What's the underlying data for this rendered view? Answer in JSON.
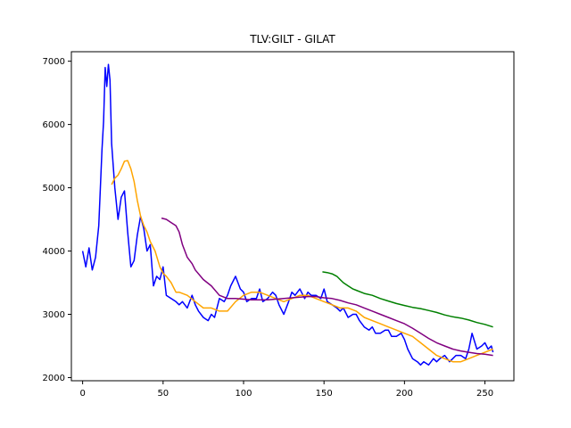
{
  "chart_data": {
    "type": "line",
    "title": "TLV:GILT - GILAT",
    "xlabel": "",
    "ylabel": "",
    "xlim": [
      -7,
      268
    ],
    "ylim": [
      1950,
      7150
    ],
    "xticks": [
      0,
      50,
      100,
      150,
      200,
      250
    ],
    "yticks": [
      2000,
      3000,
      4000,
      5000,
      6000,
      7000
    ],
    "grid": false,
    "series": [
      {
        "color": "#0000ff",
        "x": [
          0,
          2,
          4,
          6,
          8,
          10,
          11,
          12,
          13,
          14,
          15,
          16,
          17,
          18,
          20,
          22,
          24,
          26,
          28,
          30,
          32,
          34,
          36,
          38,
          40,
          42,
          44,
          46,
          48,
          50,
          52,
          55,
          58,
          60,
          62,
          65,
          68,
          70,
          72,
          75,
          78,
          80,
          82,
          85,
          88,
          90,
          92,
          95,
          98,
          100,
          102,
          105,
          108,
          110,
          112,
          115,
          118,
          120,
          122,
          125,
          128,
          130,
          132,
          135,
          138,
          140,
          142,
          145,
          148,
          150,
          152,
          155,
          158,
          160,
          162,
          165,
          168,
          170,
          172,
          175,
          178,
          180,
          182,
          185,
          188,
          190,
          192,
          195,
          198,
          200,
          202,
          205,
          208,
          210,
          212,
          215,
          218,
          220,
          222,
          225,
          228,
          230,
          232,
          235,
          238,
          240,
          242,
          245,
          248,
          250,
          252,
          254,
          255
        ],
        "y": [
          4000,
          3750,
          4050,
          3700,
          3900,
          4400,
          5000,
          5600,
          6050,
          6900,
          6600,
          6950,
          6700,
          5700,
          5000,
          4500,
          4850,
          4950,
          4300,
          3750,
          3850,
          4250,
          4550,
          4350,
          4000,
          4100,
          3450,
          3600,
          3550,
          3750,
          3300,
          3250,
          3200,
          3150,
          3200,
          3100,
          3300,
          3150,
          3050,
          2950,
          2900,
          3000,
          2950,
          3250,
          3200,
          3300,
          3450,
          3600,
          3400,
          3350,
          3200,
          3250,
          3250,
          3400,
          3200,
          3250,
          3350,
          3300,
          3150,
          3000,
          3200,
          3350,
          3300,
          3400,
          3250,
          3350,
          3300,
          3300,
          3250,
          3400,
          3200,
          3150,
          3100,
          3050,
          3100,
          2950,
          3000,
          3000,
          2900,
          2800,
          2750,
          2800,
          2700,
          2700,
          2750,
          2750,
          2650,
          2650,
          2700,
          2600,
          2450,
          2300,
          2250,
          2200,
          2250,
          2200,
          2300,
          2250,
          2300,
          2350,
          2250,
          2300,
          2350,
          2350,
          2300,
          2450,
          2700,
          2450,
          2500,
          2550,
          2450,
          2500,
          2400
        ]
      },
      {
        "color": "#ffa500",
        "x": [
          18,
          20,
          22,
          24,
          26,
          28,
          30,
          32,
          34,
          36,
          38,
          40,
          42,
          45,
          48,
          50,
          52,
          55,
          58,
          60,
          65,
          70,
          75,
          80,
          85,
          90,
          95,
          100,
          105,
          110,
          115,
          120,
          125,
          130,
          135,
          140,
          145,
          150,
          155,
          160,
          165,
          170,
          175,
          180,
          185,
          190,
          195,
          200,
          205,
          210,
          215,
          220,
          225,
          230,
          235,
          240,
          245,
          250,
          255
        ],
        "y": [
          5050,
          5150,
          5200,
          5300,
          5420,
          5430,
          5300,
          5100,
          4800,
          4550,
          4400,
          4300,
          4150,
          4000,
          3750,
          3650,
          3600,
          3500,
          3350,
          3350,
          3300,
          3200,
          3100,
          3100,
          3050,
          3050,
          3200,
          3300,
          3350,
          3350,
          3300,
          3250,
          3200,
          3250,
          3300,
          3300,
          3250,
          3200,
          3150,
          3100,
          3100,
          3050,
          2950,
          2900,
          2850,
          2800,
          2750,
          2700,
          2650,
          2550,
          2450,
          2350,
          2300,
          2250,
          2250,
          2300,
          2350,
          2400,
          2450
        ]
      },
      {
        "color": "#800080",
        "x": [
          49,
          52,
          55,
          58,
          60,
          62,
          65,
          68,
          70,
          75,
          80,
          85,
          90,
          95,
          100,
          105,
          110,
          115,
          120,
          125,
          130,
          135,
          140,
          145,
          150,
          155,
          160,
          165,
          170,
          175,
          180,
          185,
          190,
          195,
          200,
          205,
          210,
          215,
          220,
          225,
          230,
          235,
          240,
          245,
          250,
          255
        ],
        "y": [
          4520,
          4500,
          4450,
          4400,
          4300,
          4100,
          3900,
          3800,
          3700,
          3550,
          3450,
          3300,
          3250,
          3250,
          3240,
          3230,
          3230,
          3230,
          3240,
          3250,
          3260,
          3270,
          3280,
          3280,
          3260,
          3250,
          3220,
          3180,
          3150,
          3100,
          3050,
          3000,
          2950,
          2900,
          2850,
          2780,
          2700,
          2620,
          2550,
          2500,
          2450,
          2420,
          2400,
          2380,
          2370,
          2350
        ]
      },
      {
        "color": "#008000",
        "x": [
          149,
          152,
          155,
          158,
          160,
          162,
          165,
          168,
          170,
          175,
          180,
          185,
          190,
          195,
          200,
          205,
          210,
          215,
          220,
          225,
          230,
          235,
          240,
          245,
          250,
          255
        ],
        "y": [
          3670,
          3660,
          3640,
          3600,
          3550,
          3500,
          3450,
          3400,
          3380,
          3330,
          3300,
          3250,
          3210,
          3170,
          3140,
          3110,
          3090,
          3060,
          3030,
          2990,
          2960,
          2940,
          2910,
          2870,
          2840,
          2800
        ]
      }
    ]
  }
}
